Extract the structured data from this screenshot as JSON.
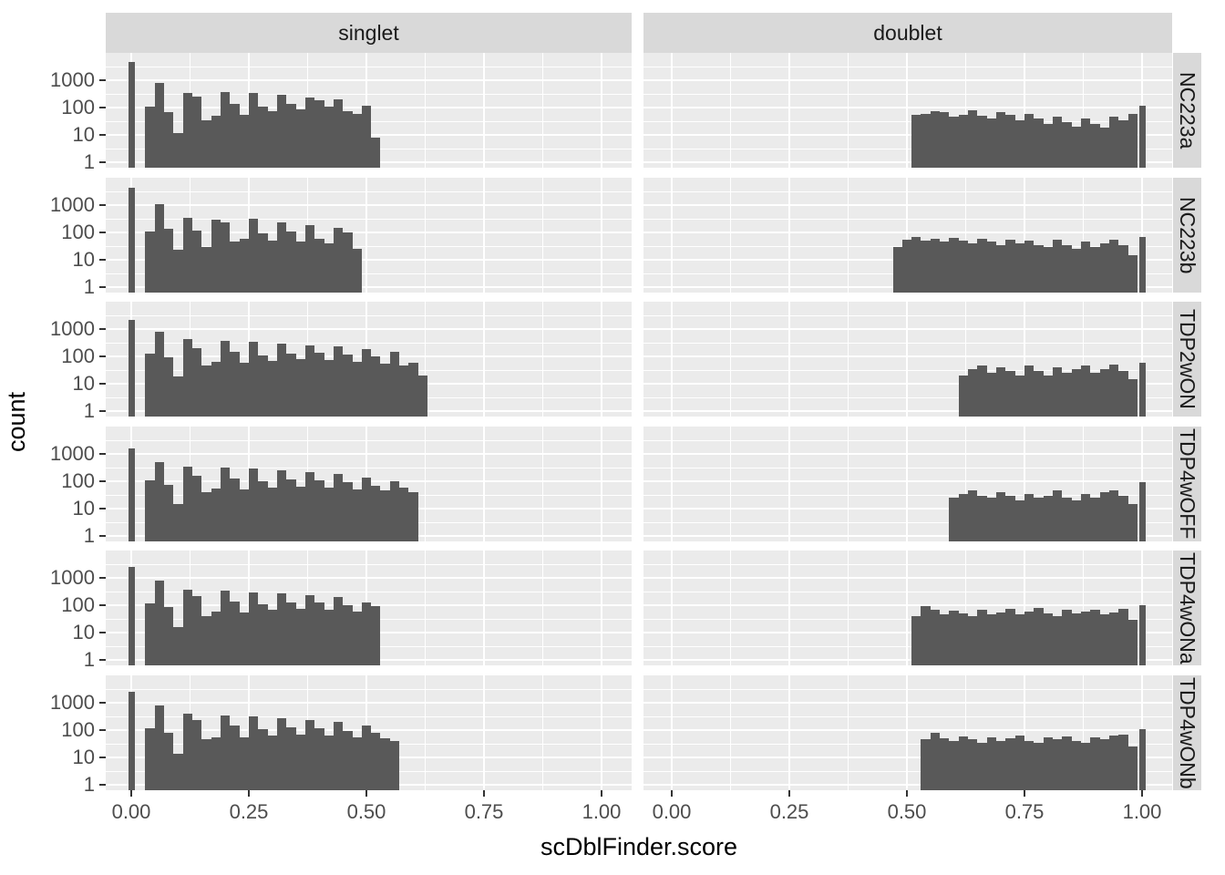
{
  "colors": {
    "bar": "#595959",
    "panel_bg": "#EBEBEB",
    "strip_bg": "#D9D9D9",
    "grid": "#FFFFFF",
    "axis_text": "#4D4D4D",
    "strip_text": "#1A1A1A",
    "title_text": "#000000",
    "tick_mark": "#333333"
  },
  "chart_data": {
    "type": "histogram-grid",
    "x_variable": "scDblFinder.score",
    "y_variable": "count",
    "y_scale": "log10",
    "binwidth": 0.02,
    "grid": true,
    "legend": "none",
    "col_facets": [
      "singlet",
      "doublet"
    ],
    "row_facets": [
      "NC223a",
      "NC223b",
      "TDP2wON",
      "TDP4wOFF",
      "TDP4wONa",
      "TDP4wONb"
    ],
    "x_axis": {
      "ticks": [
        0,
        0.25,
        0.5,
        0.75,
        1.0
      ],
      "tick_labels": [
        "0.00",
        "0.25",
        "0.50",
        "0.75",
        "1.00"
      ],
      "range": [
        -0.055,
        1.065
      ]
    },
    "y_axis": {
      "ticks": [
        1000,
        100,
        10,
        1
      ],
      "tick_labels": [
        "1000",
        "100",
        "10",
        "1"
      ],
      "range_log10": [
        0,
        4.2
      ]
    },
    "panels": [
      {
        "row": "NC223a",
        "col": "singlet",
        "spike": {
          "x": 0.0,
          "count": 4600
        },
        "bins_start": 0.03,
        "counts": [
          110,
          820,
          70,
          12,
          330,
          260,
          35,
          50,
          370,
          140,
          55,
          330,
          105,
          75,
          300,
          140,
          85,
          230,
          180,
          105,
          200,
          75,
          60,
          120,
          8
        ]
      },
      {
        "row": "NC223a",
        "col": "doublet",
        "spike": {
          "x": 1.0,
          "count": 120
        },
        "bins_start": 0.51,
        "counts": [
          55,
          60,
          75,
          70,
          45,
          55,
          80,
          50,
          40,
          70,
          55,
          35,
          60,
          40,
          25,
          45,
          30,
          20,
          40,
          25,
          18,
          45,
          35,
          60
        ]
      },
      {
        "row": "NC223b",
        "col": "singlet",
        "spike": {
          "x": 0.0,
          "count": 4400
        },
        "bins_start": 0.03,
        "counts": [
          105,
          1050,
          140,
          23,
          350,
          120,
          30,
          290,
          230,
          45,
          60,
          310,
          90,
          50,
          240,
          110,
          45,
          190,
          60,
          40,
          150,
          100,
          25
        ]
      },
      {
        "row": "NC223b",
        "col": "doublet",
        "spike": {
          "x": 1.0,
          "count": 70
        },
        "bins_start": 0.47,
        "counts": [
          30,
          55,
          70,
          50,
          60,
          45,
          65,
          50,
          40,
          60,
          45,
          35,
          55,
          40,
          50,
          35,
          30,
          55,
          35,
          25,
          45,
          30,
          40,
          55,
          35,
          15
        ]
      },
      {
        "row": "TDP2wON",
        "col": "singlet",
        "spike": {
          "x": 0.0,
          "count": 2200
        },
        "bins_start": 0.03,
        "counts": [
          122,
          770,
          90,
          18,
          420,
          200,
          45,
          65,
          380,
          150,
          60,
          330,
          110,
          70,
          300,
          130,
          80,
          260,
          140,
          75,
          230,
          120,
          65,
          190,
          100,
          55,
          150,
          45,
          60,
          20
        ]
      },
      {
        "row": "TDP2wON",
        "col": "doublet",
        "spike": {
          "x": 1.0,
          "count": 60
        },
        "bins_start": 0.61,
        "counts": [
          20,
          35,
          45,
          25,
          40,
          30,
          20,
          45,
          30,
          20,
          40,
          25,
          35,
          45,
          25,
          35,
          50,
          30,
          15
        ]
      },
      {
        "row": "TDP4wOFF",
        "col": "singlet",
        "spike": {
          "x": 0.0,
          "count": 1550
        },
        "bins_start": 0.03,
        "counts": [
          107,
          520,
          75,
          15,
          350,
          160,
          40,
          55,
          320,
          130,
          50,
          290,
          100,
          60,
          260,
          120,
          65,
          220,
          110,
          60,
          180,
          90,
          50,
          140,
          70,
          45,
          100,
          60,
          40
        ]
      },
      {
        "row": "TDP4wOFF",
        "col": "doublet",
        "spike": {
          "x": 1.0,
          "count": 90
        },
        "bins_start": 0.59,
        "counts": [
          25,
          35,
          45,
          30,
          25,
          40,
          30,
          20,
          35,
          25,
          30,
          45,
          25,
          20,
          35,
          25,
          40,
          45,
          30,
          15
        ]
      },
      {
        "row": "TDP4wONa",
        "col": "singlet",
        "spike": {
          "x": 0.0,
          "count": 2500
        },
        "bins_start": 0.03,
        "counts": [
          120,
          780,
          85,
          16,
          380,
          220,
          40,
          60,
          340,
          140,
          55,
          300,
          110,
          70,
          270,
          130,
          75,
          240,
          130,
          70,
          200,
          100,
          60,
          130,
          90
        ]
      },
      {
        "row": "TDP4wONa",
        "col": "doublet",
        "spike": {
          "x": 1.0,
          "count": 100
        },
        "bins_start": 0.51,
        "counts": [
          40,
          90,
          70,
          45,
          65,
          50,
          40,
          70,
          45,
          55,
          75,
          45,
          60,
          80,
          50,
          40,
          70,
          50,
          60,
          70,
          45,
          55,
          75,
          30
        ]
      },
      {
        "row": "TDP4wONb",
        "col": "singlet",
        "spike": {
          "x": 0.0,
          "count": 2600
        },
        "bins_start": 0.03,
        "counts": [
          115,
          800,
          80,
          14,
          400,
          230,
          45,
          55,
          350,
          150,
          55,
          310,
          105,
          65,
          280,
          125,
          70,
          240,
          120,
          65,
          200,
          95,
          55,
          150,
          80,
          50,
          40
        ]
      },
      {
        "row": "TDP4wONb",
        "col": "doublet",
        "spike": {
          "x": 1.0,
          "count": 110
        },
        "bins_start": 0.53,
        "counts": [
          45,
          80,
          50,
          40,
          60,
          45,
          35,
          55,
          40,
          50,
          65,
          40,
          35,
          55,
          45,
          60,
          40,
          35,
          55,
          45,
          65,
          70,
          25
        ]
      }
    ]
  }
}
